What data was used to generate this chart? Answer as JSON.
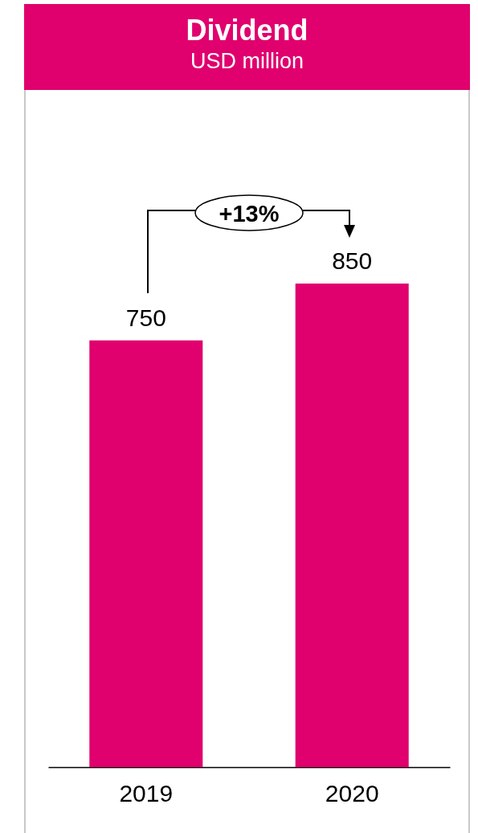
{
  "chart_data": {
    "type": "bar",
    "title": "Dividend",
    "subtitle": "USD million",
    "categories": [
      "2019",
      "2020"
    ],
    "values": [
      750,
      850
    ],
    "color": "#e0006e",
    "data_labels": true,
    "annotations": [
      "+13%"
    ]
  }
}
